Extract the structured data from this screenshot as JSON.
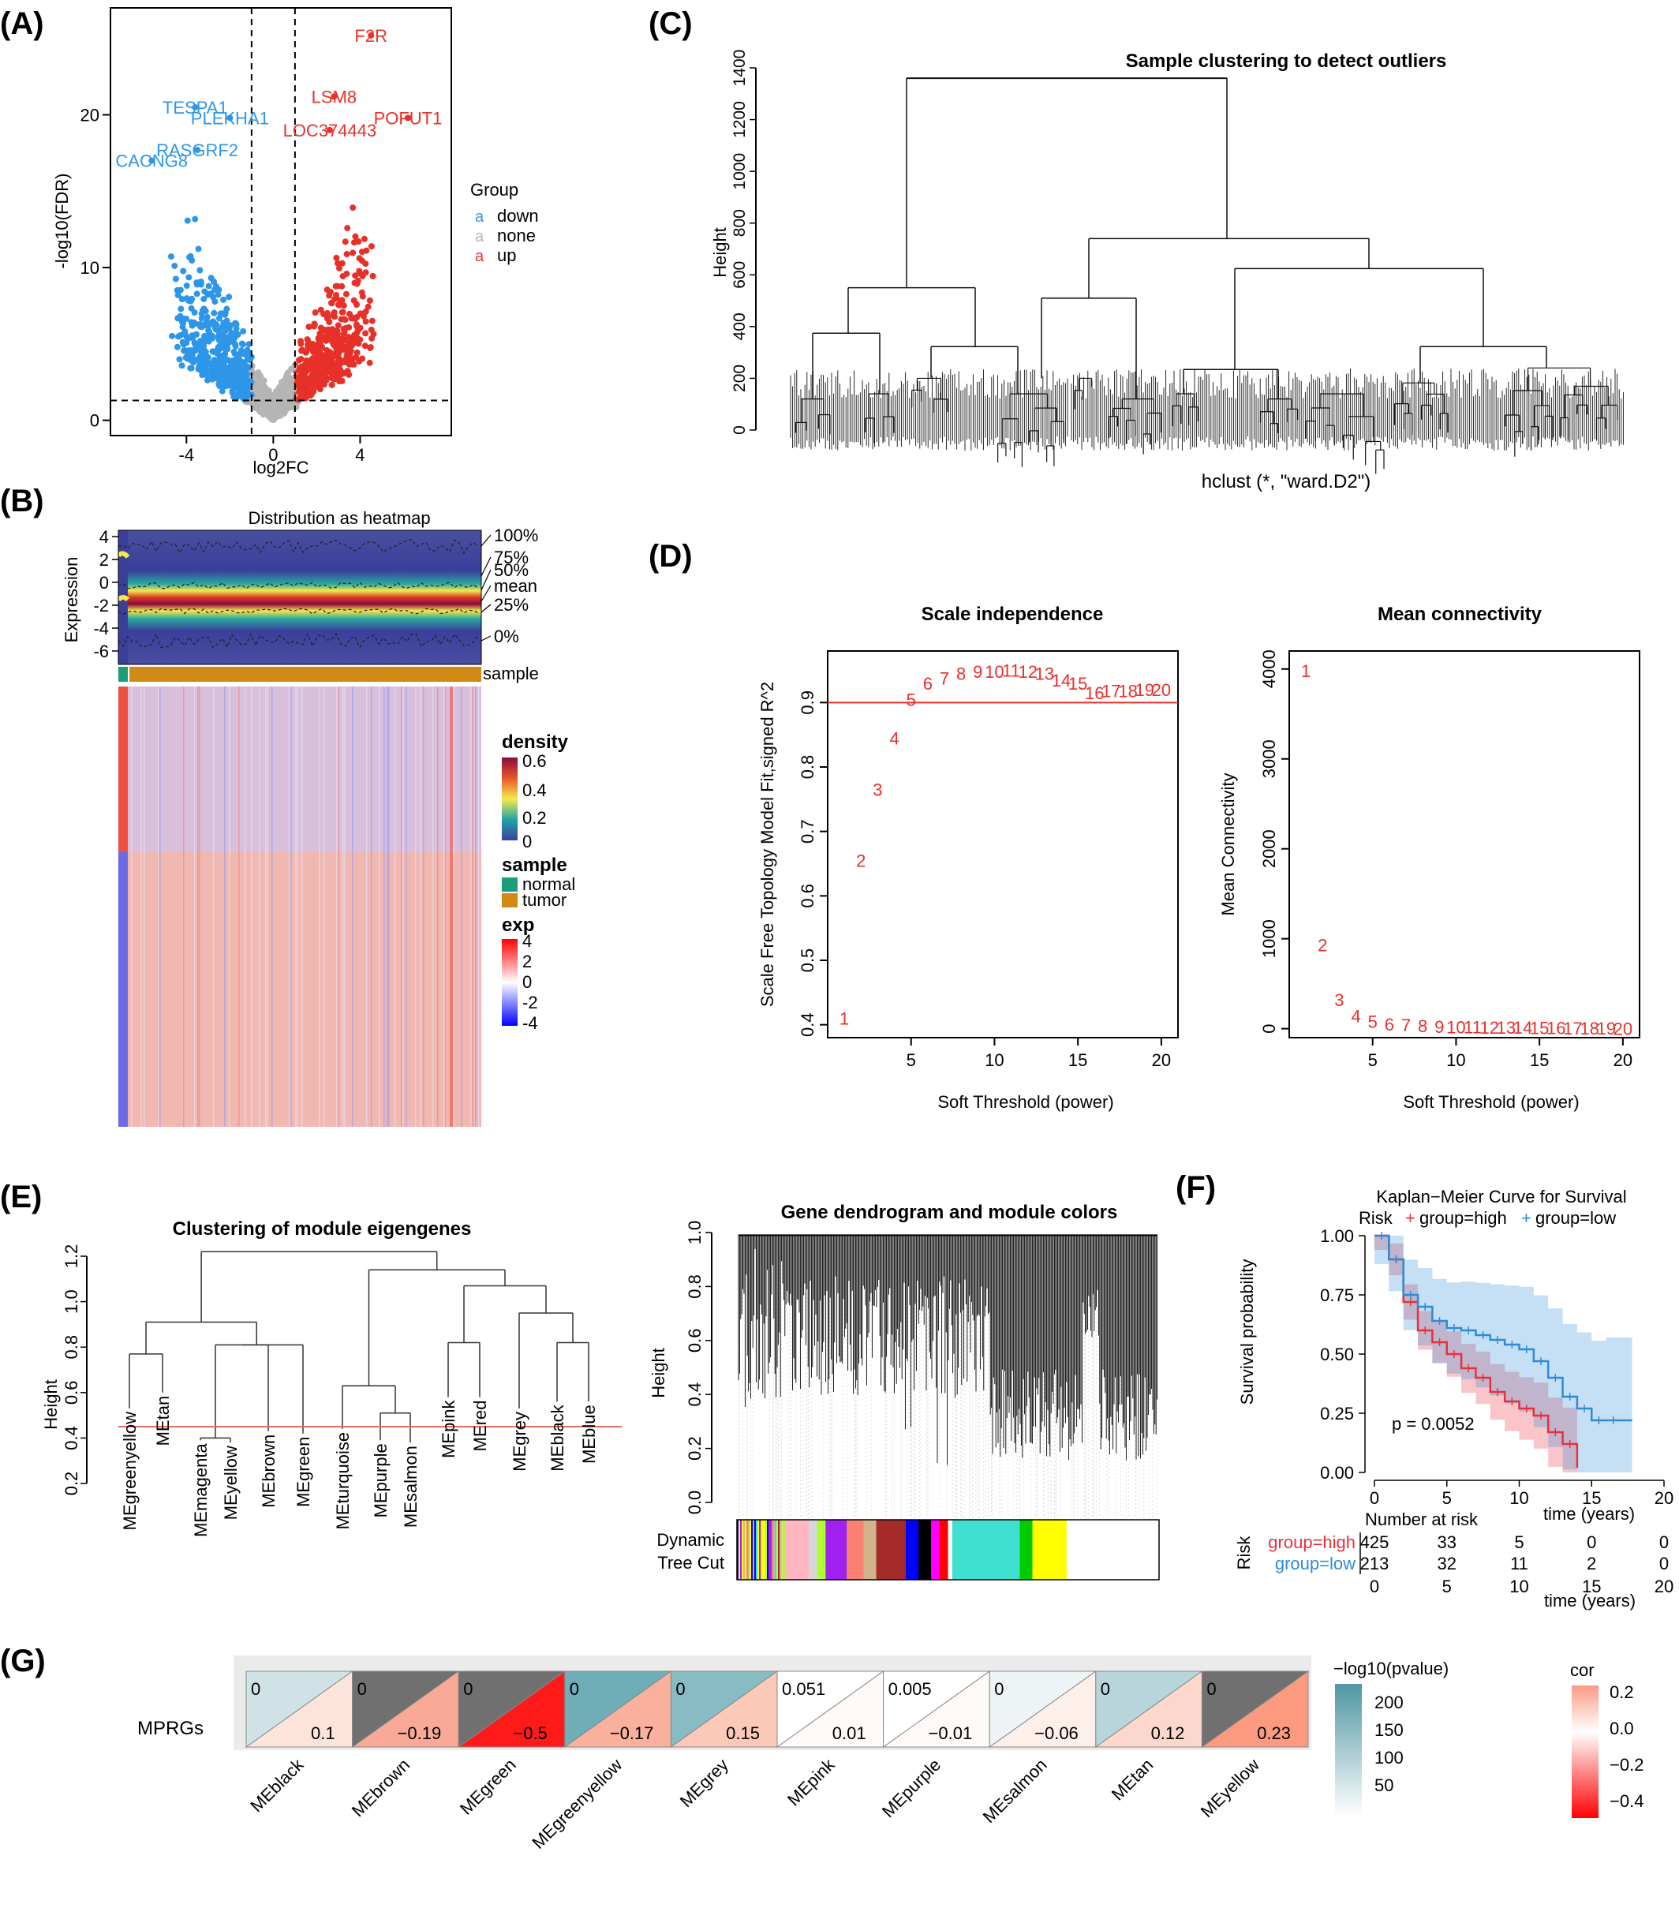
{
  "panel_labels": [
    "(A)",
    "(B)",
    "(C)",
    "(D)",
    "(E)",
    "(F)",
    "(G)"
  ],
  "chart_data": [
    {
      "panel": "(A)",
      "type": "scatter",
      "xlabel": "log2FC",
      "ylabel": "-log10(FDR)",
      "xlim": [
        -7.5,
        8.2
      ],
      "ylim": [
        -1,
        27
      ],
      "xticks": [
        "-4",
        "0",
        "4"
      ],
      "yticks": [
        "0",
        "10",
        "20"
      ],
      "legend": {
        "title": "Group",
        "entries": [
          {
            "name": "down",
            "color": "#2E96E8"
          },
          {
            "name": "none",
            "color": "#b5b5b5"
          },
          {
            "name": "up",
            "color": "#E8302A"
          }
        ]
      },
      "cutoff_lines": {
        "log2fc": [
          -1,
          1
        ],
        "fdr": 1.3
      },
      "genes": [
        {
          "label": "F2R",
          "x": 4.5,
          "y": 25.2,
          "group": "up"
        },
        {
          "label": "LSM8",
          "x": 2.8,
          "y": 21.2,
          "group": "up"
        },
        {
          "label": "POFUT1",
          "x": 6.2,
          "y": 19.8,
          "group": "up"
        },
        {
          "label": "LOC374443",
          "x": 2.6,
          "y": 19.0,
          "group": "up"
        },
        {
          "label": "TESPA1",
          "x": -3.6,
          "y": 20.5,
          "group": "down"
        },
        {
          "label": "PLEKHA1",
          "x": -2.0,
          "y": 19.8,
          "group": "down"
        },
        {
          "label": "RASGRF2",
          "x": -3.5,
          "y": 17.7,
          "group": "down"
        },
        {
          "label": "CACNG8",
          "x": -5.6,
          "y": 17.0,
          "group": "down"
        }
      ]
    },
    {
      "panel": "(B)",
      "type": "heatmap",
      "title": "Distribution as heatmap",
      "ylabel": "Expression",
      "yticks": [
        "4",
        "2",
        "0",
        "-2",
        "-4",
        "-6"
      ],
      "quantile_labels": [
        "100%",
        "75%",
        "50%",
        "mean",
        "25%",
        "0%"
      ],
      "annotation_label": "sample",
      "legend": {
        "density": {
          "title": "density",
          "ticks": [
            "0.6",
            "0.4",
            "0.2",
            "0"
          ]
        },
        "sample": {
          "title": "sample",
          "entries": [
            {
              "name": "normal",
              "color": "#1B9E77"
            },
            {
              "name": "tumor",
              "color": "#D08A14"
            }
          ]
        },
        "exp": {
          "title": "exp",
          "ticks": [
            "4",
            "2",
            "0",
            "-2",
            "-4"
          ]
        }
      }
    },
    {
      "panel": "(C)",
      "type": "dendrogram",
      "title": "Sample clustering to detect outliers",
      "ylabel": "Height",
      "xlabel": "hclust (*, \"ward.D2\")",
      "yticks": [
        0,
        200,
        400,
        600,
        800,
        1000,
        1200,
        1400
      ],
      "ylim": [
        0,
        1400
      ],
      "merge_heights": [
        1360,
        550,
        740,
        520,
        120,
        140,
        200
      ]
    },
    {
      "panel": "(D)",
      "type": "scatter",
      "subplot": "left",
      "title": "Scale independence",
      "xlabel": "Soft Threshold (power)",
      "ylabel": "Scale Free Topology Model Fit,signed R^2",
      "xticks": [
        5,
        10,
        15,
        20
      ],
      "yticks": [
        0.4,
        0.5,
        0.6,
        0.7,
        0.8,
        0.9
      ],
      "xlim": [
        0,
        21
      ],
      "ylim": [
        0.38,
        0.98
      ],
      "threshold_line": 0.9,
      "x": [
        1,
        2,
        3,
        4,
        5,
        6,
        7,
        8,
        9,
        10,
        11,
        12,
        13,
        14,
        15,
        16,
        17,
        18,
        19,
        20
      ],
      "y": [
        0.41,
        0.655,
        0.765,
        0.845,
        0.905,
        0.93,
        0.938,
        0.945,
        0.948,
        0.948,
        0.95,
        0.948,
        0.945,
        0.935,
        0.93,
        0.915,
        0.918,
        0.918,
        0.92,
        0.92
      ]
    },
    {
      "panel": "(D)",
      "type": "scatter",
      "subplot": "right",
      "title": "Mean connectivity",
      "xlabel": "Soft Threshold (power)",
      "ylabel": "Mean Connectivity",
      "xticks": [
        5,
        10,
        15,
        20
      ],
      "yticks": [
        0,
        1000,
        2000,
        3000,
        4000
      ],
      "xlim": [
        0,
        21
      ],
      "ylim": [
        -100,
        4200
      ],
      "x": [
        1,
        2,
        3,
        4,
        5,
        6,
        7,
        8,
        9,
        10,
        11,
        12,
        13,
        14,
        15,
        16,
        17,
        18,
        19,
        20
      ],
      "y": [
        3980,
        930,
        320,
        140,
        80,
        50,
        40,
        30,
        25,
        20,
        18,
        16,
        14,
        12,
        10,
        8,
        6,
        5,
        4,
        3
      ]
    },
    {
      "panel": "(E)",
      "type": "dendrogram",
      "subplot": "left",
      "title": "Clustering of module eigengenes",
      "ylabel": "Height",
      "yticks": [
        "0.2",
        "0.4",
        "0.6",
        "0.8",
        "1.0",
        "1.2"
      ],
      "ylim": [
        0.2,
        1.2
      ],
      "cut_height": 0.45,
      "leaves": [
        "MEgreenyellow",
        "MEtan",
        "MEmagenta",
        "MEyellow",
        "MEbrown",
        "MEgreen",
        "MEturquoise",
        "MEpurple",
        "MEsalmon",
        "MEpink",
        "MEred",
        "MEgrey",
        "MEblack",
        "MEblue"
      ]
    },
    {
      "panel": "(E)",
      "type": "dendrogram",
      "subplot": "right",
      "title": "Gene dendrogram and module colors",
      "ylabel": "Height",
      "yticks": [
        "0.0",
        "0.2",
        "0.4",
        "0.6",
        "0.8",
        "1.0"
      ],
      "ylim": [
        0,
        1
      ],
      "color_bar_label_1": "Dynamic",
      "color_bar_label_2": "Tree Cut",
      "module_blocks": [
        {
          "color": "#b5b5b5",
          "width": 0.12
        },
        {
          "color": "#FFB6C1",
          "width": 0.05
        },
        {
          "color": "#d7d7d7",
          "width": 0.02
        },
        {
          "color": "#ADFF2F",
          "width": 0.02
        },
        {
          "color": "#A020F0",
          "width": 0.05
        },
        {
          "color": "#FA8072",
          "width": 0.04
        },
        {
          "color": "#D2B48C",
          "width": 0.03
        },
        {
          "color": "#A52A2A",
          "width": 0.07
        },
        {
          "color": "#0000FF",
          "width": 0.03
        },
        {
          "color": "#000000",
          "width": 0.03
        },
        {
          "color": "#FF00FF",
          "width": 0.02
        },
        {
          "color": "#FF0000",
          "width": 0.02
        },
        {
          "color": "#ffffff",
          "width": 0.01
        },
        {
          "color": "#40E0D0",
          "width": 0.16
        },
        {
          "color": "#00CC00",
          "width": 0.03
        },
        {
          "color": "#FFFF00",
          "width": 0.08
        }
      ]
    },
    {
      "panel": "(F)",
      "type": "line",
      "title": "Kaplan−Meier Curve for Survival",
      "legend_title": "Risk",
      "xlabel": "time (years)",
      "ylabel": "Survival probability",
      "xticks": [
        0,
        5,
        10,
        15,
        20
      ],
      "yticks": [
        "0.00",
        "0.25",
        "0.50",
        "0.75",
        "1.00"
      ],
      "xlim": [
        0,
        20
      ],
      "ylim": [
        0,
        1
      ],
      "pvalue": "p = 0.0052",
      "series": [
        {
          "name": "group=high",
          "color": "#E8303A",
          "x": [
            0,
            1,
            2,
            3,
            4,
            5,
            6,
            7,
            8,
            9,
            10,
            11,
            12,
            13,
            14
          ],
          "y": [
            1.0,
            0.9,
            0.72,
            0.6,
            0.55,
            0.5,
            0.44,
            0.4,
            0.34,
            0.3,
            0.27,
            0.24,
            0.17,
            0.12,
            0.02
          ]
        },
        {
          "name": "group=low",
          "color": "#2E8BD8",
          "x": [
            0,
            1,
            2,
            3,
            4,
            5,
            6,
            7,
            8,
            9,
            10,
            11,
            12,
            13,
            14,
            15,
            16,
            17.8
          ],
          "y": [
            1.0,
            0.9,
            0.75,
            0.7,
            0.64,
            0.61,
            0.6,
            0.58,
            0.56,
            0.54,
            0.52,
            0.47,
            0.4,
            0.32,
            0.27,
            0.22,
            0.22,
            0.22
          ]
        }
      ],
      "risk_table": {
        "title": "Number at risk",
        "axis_label": "Risk",
        "xlabel": "time (years)",
        "rows": [
          {
            "name": "group=high",
            "color": "#E8303A",
            "values": [
              "425",
              "33",
              "5",
              "0",
              "0"
            ]
          },
          {
            "name": "group=low",
            "color": "#2E8BD8",
            "values": [
              "213",
              "32",
              "11",
              "2",
              "0"
            ]
          }
        ]
      }
    },
    {
      "panel": "(G)",
      "type": "heatmap",
      "row_label": "MPRGs",
      "categories": [
        "MEblack",
        "MEbrown",
        "MEgreen",
        "MEgreenyellow",
        "MEgrey",
        "MEpink",
        "MEpurple",
        "MEsalmon",
        "MEtan",
        "MEyellow"
      ],
      "pvalue_labels": [
        "0",
        "0",
        "0",
        "0",
        "0",
        "0.051",
        "0.005",
        "0",
        "0",
        "0"
      ],
      "cor_labels": [
        "0.1",
        "−0.19",
        "−0.5",
        "−0.17",
        "0.15",
        "0.01",
        "−0.01",
        "−0.06",
        "0.12",
        "0.23"
      ],
      "pvalue_colors": [
        "#cfe3e6",
        "#707070",
        "#707070",
        "#6fadb7",
        "#88bcc4",
        "#ffffff",
        "#ffffff",
        "#eef4f5",
        "#b7d5da",
        "#707070"
      ],
      "cor_colors": [
        "#fde4da",
        "#f9a995",
        "#ff1a1a",
        "#f9b19d",
        "#fcc9b8",
        "#fffaf8",
        "#fffaf8",
        "#fdf0eb",
        "#fcd8cc",
        "#fb9a7f"
      ],
      "legend_pvalue": {
        "title": "−log10(pvalue)",
        "ticks": [
          "200",
          "150",
          "100",
          "50"
        ]
      },
      "legend_cor": {
        "title": "cor",
        "ticks": [
          "0.2",
          "0.0",
          "−0.2",
          "−0.4"
        ]
      }
    }
  ]
}
